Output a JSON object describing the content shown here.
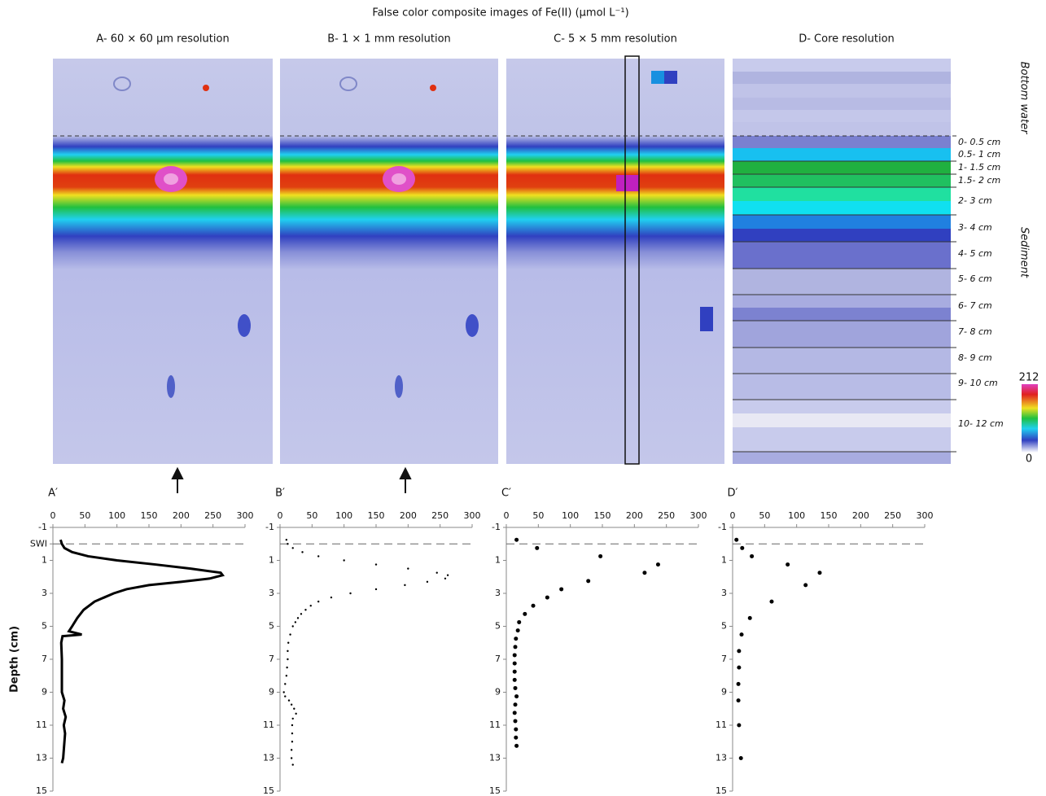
{
  "title": "False color composite images of Fe(II) (µmol L⁻¹)",
  "images": [
    {
      "label": "A- 60 × 60 µm resolution"
    },
    {
      "label": "B- 1 × 1 mm resolution"
    },
    {
      "label": "C- 5 × 5 mm resolution"
    },
    {
      "label": "D- Core resolution"
    }
  ],
  "side_labels": [
    "Bottom water",
    "Sediment"
  ],
  "depth_intervals": [
    "0- 0.5 cm",
    "0.5- 1 cm",
    "1- 1.5 cm",
    "1.5- 2 cm",
    "2- 3 cm",
    "3- 4 cm",
    "4- 5 cm",
    "5- 6 cm",
    "6- 7 cm",
    "7- 8 cm",
    "8- 9 cm",
    "9- 10 cm",
    "10- 12 cm"
  ],
  "colorbar": {
    "max": 212,
    "min": 0
  },
  "chart_data": [
    {
      "type": "line",
      "panel_label": "A′",
      "y_label": "Depth (cm)",
      "color": "#000000",
      "x": [
        12,
        14,
        18,
        30,
        55,
        100,
        160,
        215,
        262,
        265,
        245,
        200,
        150,
        115,
        95,
        80,
        65,
        48,
        38,
        30,
        25,
        45,
        15,
        13,
        14,
        14,
        14,
        18,
        16,
        20,
        17,
        19,
        18,
        17,
        16,
        14
      ],
      "values": [
        -0.25,
        0,
        0.25,
        0.5,
        0.75,
        1,
        1.25,
        1.5,
        1.75,
        1.9,
        2.1,
        2.3,
        2.5,
        2.75,
        3,
        3.25,
        3.5,
        4,
        4.5,
        5,
        5.3,
        5.5,
        5.6,
        6,
        7,
        8,
        9,
        9.5,
        10,
        10.5,
        11,
        11.5,
        12,
        12.5,
        13,
        13.3
      ],
      "xlim": [
        0,
        300
      ],
      "xticks": [
        0,
        50,
        100,
        150,
        200,
        250,
        300
      ],
      "ylim": [
        15,
        -1
      ],
      "yticks": [
        -1,
        {
          "value": 0,
          "label": "SWI"
        },
        1,
        3,
        5,
        7,
        9,
        11,
        13,
        15
      ],
      "reference_line": 0
    },
    {
      "type": "scatter",
      "panel_label": "B′",
      "color": "#000000",
      "marker_size": 1.2,
      "x": [
        10,
        12,
        20,
        35,
        60,
        100,
        150,
        200,
        245,
        262,
        258,
        230,
        195,
        150,
        110,
        80,
        60,
        48,
        40,
        33,
        28,
        24,
        20,
        16,
        13,
        12,
        12,
        11,
        10,
        8,
        6,
        8,
        14,
        18,
        22,
        25,
        20,
        19,
        19,
        19,
        18,
        18,
        20
      ],
      "values": [
        -0.25,
        0,
        0.25,
        0.5,
        0.75,
        1,
        1.25,
        1.5,
        1.75,
        1.9,
        2.1,
        2.3,
        2.5,
        2.75,
        3,
        3.25,
        3.5,
        3.75,
        4,
        4.25,
        4.5,
        4.75,
        5,
        5.5,
        6,
        6.5,
        7,
        7.5,
        8,
        8.5,
        9,
        9.25,
        9.5,
        9.75,
        10,
        10.3,
        10.6,
        11,
        11.5,
        12,
        12.5,
        13,
        13.4
      ],
      "xlim": [
        0,
        300
      ],
      "xticks": [
        0,
        50,
        100,
        150,
        200,
        250,
        300
      ],
      "ylim": [
        15,
        -1
      ],
      "yticks": [
        -1,
        1,
        3,
        5,
        7,
        9,
        11,
        13,
        15
      ],
      "reference_line": 0
    },
    {
      "type": "scatter",
      "panel_label": "C′",
      "color": "#000000",
      "marker_size": 2.5,
      "x": [
        16,
        48,
        147,
        237,
        216,
        128,
        86,
        64,
        42,
        29,
        20,
        18,
        15,
        14,
        13,
        13,
        13,
        13,
        14,
        16,
        14,
        13,
        14,
        15,
        15,
        16
      ],
      "values": [
        -0.25,
        0.25,
        0.75,
        1.25,
        1.75,
        2.25,
        2.75,
        3.25,
        3.75,
        4.25,
        4.75,
        5.25,
        5.75,
        6.25,
        6.75,
        7.25,
        7.75,
        8.25,
        8.75,
        9.25,
        9.75,
        10.25,
        10.75,
        11.25,
        11.75,
        12.25
      ],
      "xlim": [
        0,
        300
      ],
      "xticks": [
        0,
        50,
        100,
        150,
        200,
        250,
        300
      ],
      "ylim": [
        15,
        -1
      ],
      "yticks": [
        -1,
        1,
        3,
        5,
        7,
        9,
        11,
        13,
        15
      ],
      "reference_line": 0
    },
    {
      "type": "scatter",
      "panel_label": "D′",
      "color": "#000000",
      "marker_size": 2.5,
      "x": [
        6,
        15,
        30,
        86,
        136,
        114,
        61,
        27,
        14,
        10,
        10,
        9,
        9,
        10,
        13
      ],
      "values": [
        -0.25,
        0.25,
        0.75,
        1.25,
        1.75,
        2.5,
        3.5,
        4.5,
        5.5,
        6.5,
        7.5,
        8.5,
        9.5,
        11,
        13
      ],
      "xlim": [
        0,
        300
      ],
      "xticks": [
        0,
        50,
        100,
        150,
        200,
        250,
        300
      ],
      "ylim": [
        15,
        -1
      ],
      "yticks": [
        -1,
        1,
        3,
        5,
        7,
        9,
        11,
        13,
        15
      ],
      "reference_line": 0
    }
  ]
}
